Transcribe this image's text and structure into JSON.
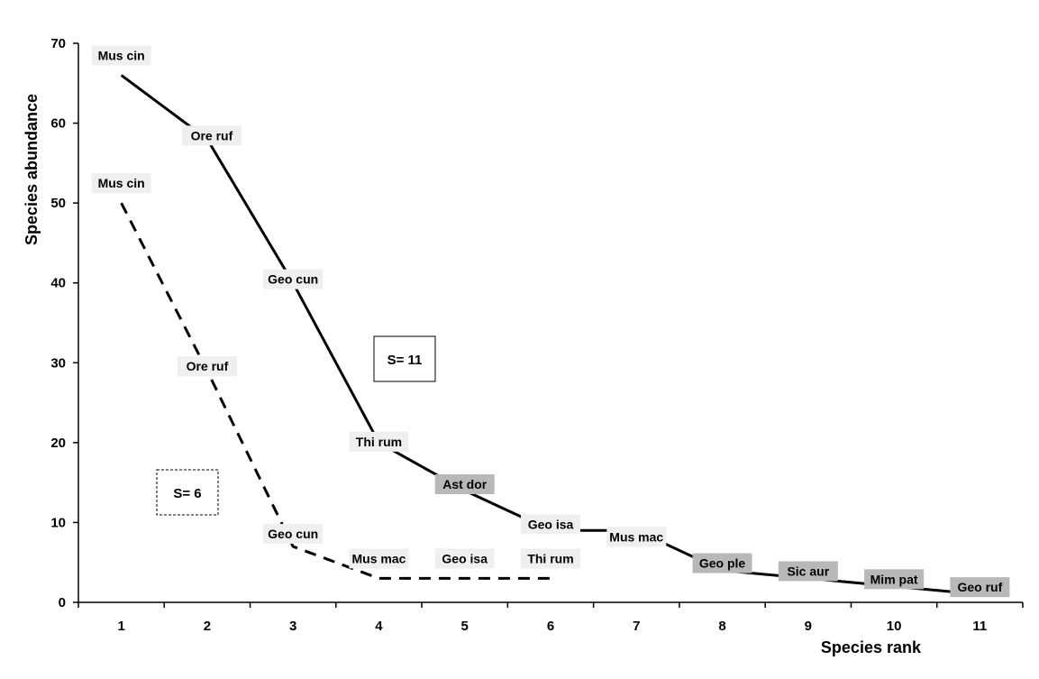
{
  "chart_data": {
    "type": "line",
    "title": "",
    "xlabel": "Species rank",
    "ylabel": "Species abundance",
    "xlim": [
      0.5,
      11.5
    ],
    "ylim": [
      0,
      70
    ],
    "x_ticks": [
      1,
      2,
      3,
      4,
      5,
      6,
      7,
      8,
      9,
      10,
      11
    ],
    "y_ticks": [
      0,
      10,
      20,
      30,
      40,
      50,
      60,
      70
    ],
    "grid": false,
    "series": [
      {
        "style": "solid",
        "x": [
          1,
          2,
          3,
          4,
          5,
          6,
          7,
          8,
          9,
          10,
          11
        ],
        "y": [
          66,
          58,
          40,
          20,
          14,
          9,
          9,
          4,
          3,
          2,
          1
        ],
        "labels": [
          "Mus cin",
          "Ore ruf",
          "Geo cun",
          "Thi rum",
          "Ast dor",
          "Geo isa",
          "Mus mac",
          "Geo ple",
          "Sic aur",
          "Mim pat",
          "Geo ruf"
        ],
        "label_shading": [
          "light",
          "light",
          "light",
          "light",
          "dark",
          "light",
          "light",
          "dark",
          "dark",
          "dark",
          "dark"
        ]
      },
      {
        "style": "dashed",
        "x": [
          1,
          2,
          3,
          4,
          5,
          6
        ],
        "y": [
          50,
          29,
          7,
          3,
          3,
          3
        ],
        "labels": [
          "Mus cin",
          "Ore ruf",
          "Geo cun",
          "Mus mac",
          "Geo isa",
          "Thi rum"
        ],
        "label_shading": [
          "light",
          "light",
          "light",
          "light",
          "light",
          "light"
        ]
      }
    ],
    "annotations": [
      {
        "text": "S= 11",
        "series": "solid",
        "border": "solid"
      },
      {
        "text": "S= 6",
        "series": "dashed",
        "border": "dashed"
      }
    ],
    "colors": {
      "line": "#000000",
      "label_light": "#efefef",
      "label_dark": "#b8b8b8"
    }
  }
}
